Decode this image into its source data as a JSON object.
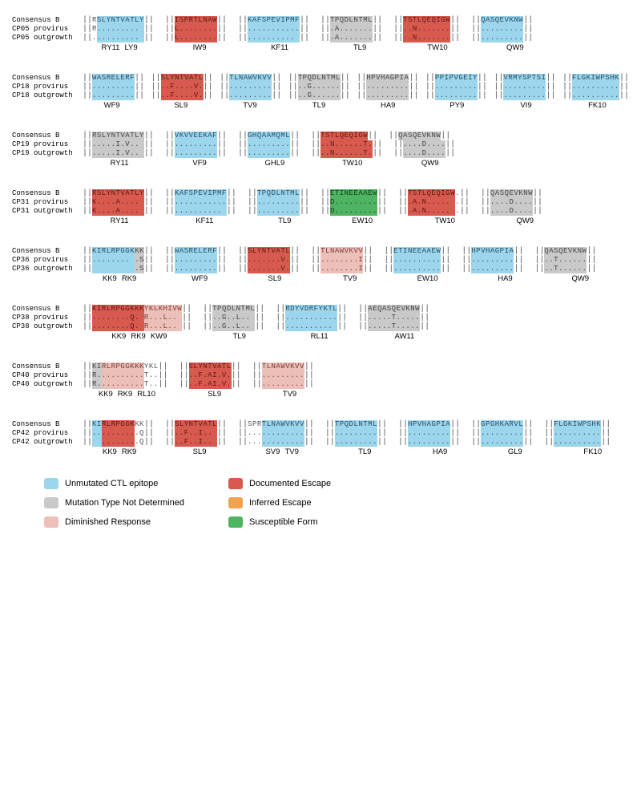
{
  "colors": {
    "blue": "#9cd6ed",
    "red": "#d85a4f",
    "gray": "#c9c9c9",
    "orange": "#f0a24f",
    "pink": "#ecbfb9",
    "green": "#4fb461"
  },
  "char_width": 6.2,
  "between_epi_gap": 14,
  "panels": [
    {
      "id": "CP05",
      "row_labels": [
        "Consensus B",
        "CP05 provirus",
        "CP05 outgrowth"
      ],
      "epitopes": [
        {
          "names": [
            "RY11",
            "LY9"
          ],
          "segments": [
            {
              "color": "none",
              "chars": [
                "R",
                "R",
                "."
              ],
              "pre": true
            },
            {
              "color": "blue",
              "chars": [
                "SLYNTVATLY",
                ".........",
                "........."
              ]
            }
          ]
        },
        {
          "names": [
            "IW9"
          ],
          "segments": [
            {
              "color": "red",
              "chars": [
                "ISPRTLNAW",
                "L........",
                "L........"
              ]
            }
          ]
        },
        {
          "names": [
            "KF11"
          ],
          "segments": [
            {
              "color": "blue",
              "chars": [
                "KAFSPEVIPMF",
                "...........",
                ".........."
              ]
            }
          ]
        },
        {
          "names": [
            "TL9"
          ],
          "segments": [
            {
              "color": "gray",
              "chars": [
                "TPQDLNTML",
                ".A.......",
                ".A......."
              ]
            }
          ]
        },
        {
          "names": [
            "TW10"
          ],
          "segments": [
            {
              "color": "red",
              "chars": [
                "TSTLQEQIGW",
                "..N.......",
                "..N......."
              ]
            }
          ]
        },
        {
          "names": [
            "QW9"
          ],
          "segments": [
            {
              "color": "blue",
              "chars": [
                "QASQEVKNW",
                ".........",
                "........."
              ]
            }
          ]
        }
      ]
    },
    {
      "id": "CP18",
      "row_labels": [
        "Consensus B",
        "CP18 provirus",
        "CP18 outgrowth"
      ],
      "epitopes": [
        {
          "names": [
            "WF9"
          ],
          "segments": [
            {
              "color": "blue",
              "chars": [
                "WASRELERF",
                ".........",
                "........."
              ]
            }
          ]
        },
        {
          "names": [
            "SL9"
          ],
          "segments": [
            {
              "color": "red",
              "chars": [
                "SLYNTVATL",
                "..F....V.",
                "..F....V."
              ]
            }
          ]
        },
        {
          "names": [
            "TV9"
          ],
          "segments": [
            {
              "color": "blue",
              "chars": [
                "TLNAWVKVV",
                ".........",
                "........."
              ]
            }
          ]
        },
        {
          "names": [
            "TL9"
          ],
          "segments": [
            {
              "color": "gray",
              "chars": [
                "TPQDLNTML",
                "..G......",
                "..G......"
              ]
            }
          ]
        },
        {
          "names": [
            "HA9"
          ],
          "segments": [
            {
              "color": "gray",
              "chars": [
                "HPVHAGPIA",
                ".........",
                "........."
              ]
            }
          ]
        },
        {
          "names": [
            "PY9"
          ],
          "segments": [
            {
              "color": "blue",
              "chars": [
                "PPIPVGEIY",
                ".........",
                "........."
              ]
            }
          ]
        },
        {
          "names": [
            "VI9"
          ],
          "segments": [
            {
              "color": "blue",
              "chars": [
                "VRMYSPTSI",
                ".........",
                "........."
              ]
            }
          ]
        },
        {
          "names": [
            "FK10"
          ],
          "segments": [
            {
              "color": "blue",
              "chars": [
                "FLGKIWPSHK",
                "..........",
                ".........."
              ]
            }
          ]
        }
      ]
    },
    {
      "id": "CP19",
      "row_labels": [
        "Consensus B",
        "CP19 provirus",
        "CP19 outgrowth"
      ],
      "epitopes": [
        {
          "names": [
            "RY11"
          ],
          "segments": [
            {
              "color": "gray",
              "chars": [
                "RSLYNTVATLY",
                ".....I.V..",
                ".....I.V.."
              ]
            }
          ]
        },
        {
          "names": [
            "VF9"
          ],
          "segments": [
            {
              "color": "blue",
              "chars": [
                "VKVVEEKAF",
                ".........",
                "........."
              ]
            }
          ]
        },
        {
          "names": [
            "GHL9"
          ],
          "segments": [
            {
              "color": "blue",
              "chars": [
                "GHQAAMQML",
                ".........",
                "........."
              ]
            }
          ]
        },
        {
          "names": [
            "TW10"
          ],
          "segments": [
            {
              "color": "red",
              "chars": [
                "TSTLQEQIGW",
                "..N......T.",
                "..N......T."
              ]
            }
          ]
        },
        {
          "names": [
            "QW9"
          ],
          "segments": [
            {
              "color": "gray",
              "chars": [
                "QASQEVKNW",
                "....D....",
                "....D...."
              ]
            }
          ]
        }
      ]
    },
    {
      "id": "CP31",
      "row_labels": [
        "Consensus B",
        "CP31 provirus",
        "CP31 outgrowth"
      ],
      "epitopes": [
        {
          "names": [
            "RY11"
          ],
          "segments": [
            {
              "color": "red",
              "chars": [
                "RSLYNTVATLY",
                "K....A....",
                "K....A...."
              ]
            }
          ]
        },
        {
          "names": [
            "KF11"
          ],
          "segments": [
            {
              "color": "blue",
              "chars": [
                "KAFSPEVIPMF",
                "...........",
                ".........."
              ]
            }
          ]
        },
        {
          "names": [
            "TL9"
          ],
          "segments": [
            {
              "color": "blue",
              "chars": [
                "TPQDLNTML",
                ".........",
                "........."
              ]
            }
          ]
        },
        {
          "names": [
            "EW10"
          ],
          "segments": [
            {
              "color": "green",
              "chars": [
                "ETINEEAAEW",
                "D.........",
                "D........."
              ]
            }
          ]
        },
        {
          "names": [
            "TW10"
          ],
          "segments": [
            {
              "color": "red",
              "chars": [
                "TSTLQEQIGW",
                ".A.N.....",
                ".A.N....."
              ]
            },
            {
              "color": "none",
              "chars": [
                ".",
                ".",
                "."
              ],
              "post": true
            }
          ]
        },
        {
          "names": [
            "QW9"
          ],
          "segments": [
            {
              "color": "gray",
              "chars": [
                "QASQEVKNW",
                "....D....",
                "....D...."
              ]
            }
          ]
        }
      ]
    },
    {
      "id": "CP36",
      "row_labels": [
        "Consensus B",
        "CP36 provirus",
        "CP36 outgrowth"
      ],
      "epitopes": [
        {
          "names": [
            "KK9",
            "RK9"
          ],
          "segments": [
            {
              "color": "blue",
              "chars": [
                "KIRLRPGGK",
                "........",
                ""
              ]
            },
            {
              "color": "gray",
              "chars": [
                "KK",
                ".S",
                ".S"
              ]
            }
          ]
        },
        {
          "names": [
            "WF9"
          ],
          "segments": [
            {
              "color": "blue",
              "chars": [
                "WASRELERF",
                ".........",
                "........."
              ]
            }
          ]
        },
        {
          "names": [
            "SL9"
          ],
          "segments": [
            {
              "color": "red",
              "chars": [
                "SLYNTVATL",
                ".......V.",
                ".......V."
              ]
            }
          ]
        },
        {
          "names": [
            "TV9"
          ],
          "segments": [
            {
              "color": "pink",
              "chars": [
                "TLNAWVKVV",
                "........I",
                "........I"
              ]
            }
          ]
        },
        {
          "names": [
            "EW10"
          ],
          "segments": [
            {
              "color": "blue",
              "chars": [
                "ETINEEAAEW",
                "..........",
                ".........."
              ]
            }
          ]
        },
        {
          "names": [
            "HA9"
          ],
          "segments": [
            {
              "color": "blue",
              "chars": [
                "HPVHAGPIA",
                ".........",
                "........."
              ]
            }
          ]
        },
        {
          "names": [
            "QW9"
          ],
          "segments": [
            {
              "color": "gray",
              "chars": [
                "QASQEVKNW",
                "..T......",
                "..T......"
              ]
            }
          ]
        }
      ]
    },
    {
      "id": "CP38",
      "row_labels": [
        "Consensus B",
        "CP38 provirus",
        "CP38 outgrowth"
      ],
      "epitopes": [
        {
          "names": [
            "KK9",
            "RK9",
            "KW9"
          ],
          "segments": [
            {
              "color": "red",
              "chars": [
                "KIRLRPGGKKK",
                "........Q.",
                "........Q."
              ],
              "overlap": true
            },
            {
              "color": "pink",
              "chars": [
                "YKLKHIVW",
                "R...L..",
                "R...L.."
              ]
            }
          ]
        },
        {
          "names": [
            "TL9"
          ],
          "segments": [
            {
              "color": "gray",
              "chars": [
                "TPQDLNTML",
                "..G..L..",
                "..G..L.."
              ]
            }
          ]
        },
        {
          "names": [
            "RL11"
          ],
          "segments": [
            {
              "color": "blue",
              "chars": [
                "RDYVDRFYKTL",
                "...........",
                ".........."
              ]
            }
          ]
        },
        {
          "names": [
            "AW11"
          ],
          "segments": [
            {
              "color": "gray",
              "chars": [
                "AEQASQEVKNW",
                ".....T.....",
                ".....T....."
              ]
            }
          ]
        }
      ]
    },
    {
      "id": "CP40",
      "row_labels": [
        "Consensus B",
        "CP40 provirus",
        "CP40 outgrowth"
      ],
      "epitopes": [
        {
          "names": [
            "KK9",
            "RK9",
            "RL10"
          ],
          "segments": [
            {
              "color": "gray",
              "chars": [
                "KI",
                "R.",
                "R."
              ]
            },
            {
              "color": "pink",
              "chars": [
                "RLRPGGKKK",
                ".........",
                "........."
              ]
            },
            {
              "color": "none",
              "chars": [
                "YKL",
                "T..",
                "T.."
              ],
              "post": true
            }
          ]
        },
        {
          "names": [
            "SL9"
          ],
          "segments": [
            {
              "color": "red",
              "chars": [
                "SLYNTVATL",
                "..F.AI.V.",
                "..F.AI.V."
              ]
            }
          ]
        },
        {
          "names": [
            "TV9"
          ],
          "segments": [
            {
              "color": "pink",
              "chars": [
                "TLNAWVKVV",
                ".........",
                "........."
              ]
            }
          ]
        }
      ]
    },
    {
      "id": "CP42",
      "row_labels": [
        "Consensus B",
        "CP42 provirus",
        "CP42 outgrowth"
      ],
      "epitopes": [
        {
          "names": [
            "KK9",
            "RK9"
          ],
          "segments": [
            {
              "color": "blue",
              "chars": [
                "KI",
                "..",
                ""
              ]
            },
            {
              "color": "red",
              "chars": [
                "RLRPGGK",
                ".......",
                "......."
              ]
            },
            {
              "color": "none",
              "chars": [
                "KK",
                ".Q",
                ".Q"
              ],
              "post": true
            }
          ]
        },
        {
          "names": [
            "SL9"
          ],
          "segments": [
            {
              "color": "red",
              "chars": [
                "SLYNTVATL",
                "..F..I..",
                "..F..I.."
              ]
            }
          ]
        },
        {
          "names": [
            "SV9",
            "TV9"
          ],
          "segments": [
            {
              "color": "none",
              "chars": [
                "SPR",
                "...",
                "..."
              ],
              "pre": true
            },
            {
              "color": "blue",
              "chars": [
                "TLNAWVKVV",
                ".........",
                "........."
              ]
            }
          ]
        },
        {
          "names": [
            "TL9"
          ],
          "segments": [
            {
              "color": "blue",
              "chars": [
                "TPQDLNTML",
                ".........",
                "........."
              ]
            }
          ]
        },
        {
          "names": [
            "HA9"
          ],
          "segments": [
            {
              "color": "blue",
              "chars": [
                "HPVHAGPIA",
                ".........",
                "........."
              ]
            }
          ]
        },
        {
          "names": [
            "GL9"
          ],
          "segments": [
            {
              "color": "blue",
              "chars": [
                "GPGHKARVL",
                ".........",
                "........."
              ]
            }
          ]
        },
        {
          "names": [
            "FK10"
          ],
          "segments": [
            {
              "color": "blue",
              "chars": [
                "FLGKIWPSHK",
                "..........",
                ".........."
              ]
            }
          ]
        }
      ]
    }
  ],
  "legend": [
    {
      "color": "blue",
      "label": "Unmutated CTL epitope"
    },
    {
      "color": "red",
      "label": "Documented Escape"
    },
    {
      "color": "gray",
      "label": "Mutation Type Not Determined"
    },
    {
      "color": "orange",
      "label": "Inferred Escape"
    },
    {
      "color": "pink",
      "label": "Diminished Response"
    },
    {
      "color": "green",
      "label": "Susceptible Form"
    }
  ]
}
